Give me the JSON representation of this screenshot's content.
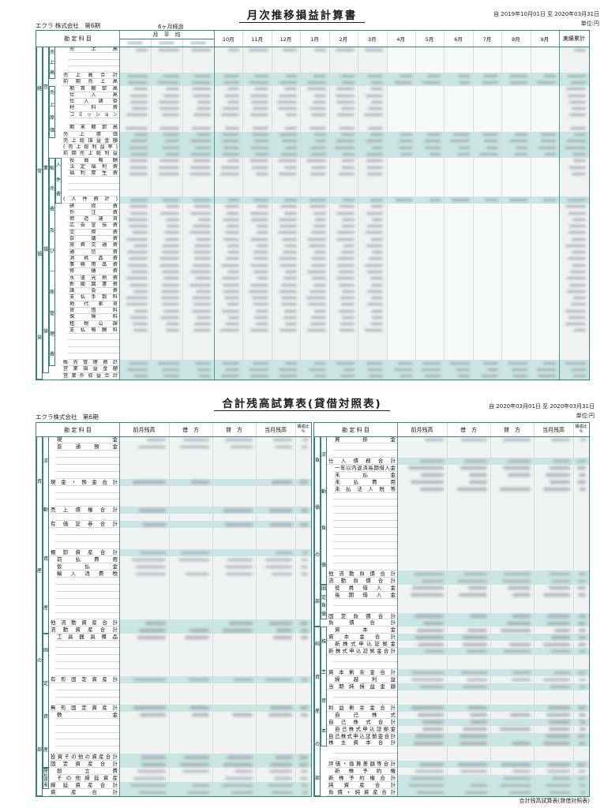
{
  "report1": {
    "title": "月次推移損益計算書",
    "period": "自 2019年10月01日 至 2020年03月31日",
    "unit": "単位:円",
    "company": "エクラ 株式会社　第6期",
    "elapsed": "6ヶ月経過",
    "header": {
      "account": "勘  定  科  目",
      "avg_group": "月　平　均",
      "months": [
        "10月",
        "11月",
        "12月",
        "1月",
        "2月",
        "3月",
        "4月",
        "5月",
        "6月",
        "7月",
        "8月",
        "9月"
      ],
      "total": "実績累計"
    },
    "bands": [
      {
        "col": 0,
        "label": "経常損益",
        "from": 1,
        "to": 51
      },
      {
        "col": 1,
        "label": "営業損益",
        "from": 1,
        "to": 50
      },
      {
        "col": 2,
        "label": "売上高",
        "from": 1,
        "to": 5
      },
      {
        "col": 2,
        "label": "売上原価",
        "from": 7,
        "to": 14
      },
      {
        "col": 2,
        "label": "販売費及び一般管理費",
        "from": 18,
        "to": 49
      },
      {
        "col": 3,
        "label": "人件費",
        "from": 18,
        "to": 24
      }
    ],
    "rows": [
      {
        "t": "売上高",
        "hl": 0
      },
      {
        "t": "",
        "hl": 0
      },
      {
        "t": "",
        "hl": 0
      },
      {
        "t": "",
        "hl": 0
      },
      {
        "t": "売上高合計",
        "hl": 1
      },
      {
        "t": "前期売上高",
        "hl": 1
      },
      {
        "t": "期首棚卸高",
        "hl": 0
      },
      {
        "t": "仕入高",
        "hl": 0
      },
      {
        "t": "仕入諸掛",
        "hl": 0
      },
      {
        "t": "材料費",
        "hl": 0
      },
      {
        "t": "コミッション",
        "hl": 0
      },
      {
        "t": "",
        "hl": 0
      },
      {
        "t": "期末棚卸高",
        "hl": 0
      },
      {
        "t": "売上原価",
        "hl": 1
      },
      {
        "t": "売上総損益金額",
        "hl": 1
      },
      {
        "t": "(売上総利益率)",
        "hl": 1
      },
      {
        "t": "前期売上総利益",
        "hl": 1
      },
      {
        "t": "役員報酬",
        "hl": 0
      },
      {
        "t": "法定福利費",
        "hl": 0
      },
      {
        "t": "福利厚生費",
        "hl": 0
      },
      {
        "t": "",
        "hl": 0
      },
      {
        "t": "",
        "hl": 0
      },
      {
        "t": "",
        "hl": 0
      },
      {
        "t": "(人件費計)",
        "hl": 1
      },
      {
        "t": "研修費",
        "hl": 0
      },
      {
        "t": "外注費",
        "hl": 0
      },
      {
        "t": "荷造運賃",
        "hl": 0
      },
      {
        "t": "広告宣伝費",
        "hl": 0
      },
      {
        "t": "交際費",
        "hl": 0
      },
      {
        "t": "会議費",
        "hl": 0
      },
      {
        "t": "旅費交通費",
        "hl": 0
      },
      {
        "t": "通信費",
        "hl": 0
      },
      {
        "t": "消耗品費",
        "hl": 0
      },
      {
        "t": "事務用品費",
        "hl": 0
      },
      {
        "t": "修繕費",
        "hl": 0
      },
      {
        "t": "水道光熱費",
        "hl": 0
      },
      {
        "t": "新聞図書費",
        "hl": 0
      },
      {
        "t": "諸会費",
        "hl": 0
      },
      {
        "t": "支払手数料",
        "hl": 0
      },
      {
        "t": "地代家賃",
        "hl": 0
      },
      {
        "t": "賃借料",
        "hl": 0
      },
      {
        "t": "保険料",
        "hl": 0
      },
      {
        "t": "租税公課",
        "hl": 0
      },
      {
        "t": "支払報酬料",
        "hl": 0
      },
      {
        "t": "",
        "hl": 0
      },
      {
        "t": "",
        "hl": 0
      },
      {
        "t": "",
        "hl": 0
      },
      {
        "t": "",
        "hl": 0
      },
      {
        "t": "販売管理費計",
        "hl": 1
      },
      {
        "t": "営業損益金額",
        "hl": 1
      },
      {
        "t": "営業外収益合計",
        "hl": 1
      }
    ]
  },
  "report2": {
    "title": "合計残高試算表(貸借対照表)",
    "period": "自 2020年03月01日 至 2020年03月31日",
    "unit": "単位:円",
    "company": "エクラ株式会社　第6期",
    "footer": "合計残高試算表(貸借対照表)",
    "header": {
      "account": "勘  定  科  目",
      "cols": [
        "前月残高",
        "借　方",
        "貸　方",
        "当月残高"
      ],
      "ratio": "構成比",
      "ratio2": "％"
    },
    "left": {
      "bands": [
        {
          "col": 0,
          "label": "資産の部",
          "from": 1,
          "to": 51
        },
        {
          "col": 1,
          "label": "流動資産",
          "from": 1,
          "to": 28
        },
        {
          "col": 1,
          "label": "固定資産",
          "from": 29,
          "to": 47
        },
        {
          "col": 1,
          "label": "繰延資産",
          "from": 48,
          "to": 50
        }
      ],
      "rows": [
        {
          "t": "現金",
          "hl": 0
        },
        {
          "t": "普通預金",
          "hl": 0
        },
        {
          "t": "",
          "hl": 0
        },
        {
          "t": "",
          "hl": 0
        },
        {
          "t": "",
          "hl": 0
        },
        {
          "t": "",
          "hl": 0
        },
        {
          "t": "現金・預金合計",
          "hl": 1
        },
        {
          "t": "",
          "hl": 0
        },
        {
          "t": "",
          "hl": 0
        },
        {
          "t": "",
          "hl": 0
        },
        {
          "t": "売上債権合計",
          "hl": 1
        },
        {
          "t": "",
          "hl": 0
        },
        {
          "t": "有価証券合計",
          "hl": 1
        },
        {
          "t": "",
          "hl": 0
        },
        {
          "t": "",
          "hl": 0
        },
        {
          "t": "",
          "hl": 0
        },
        {
          "t": "棚卸資産合計",
          "hl": 1
        },
        {
          "t": "前払費用",
          "hl": 0
        },
        {
          "t": "仮払金",
          "hl": 0
        },
        {
          "t": "輸入消費税",
          "hl": 0
        },
        {
          "t": "",
          "hl": 0
        },
        {
          "t": "",
          "hl": 0
        },
        {
          "t": "",
          "hl": 0
        },
        {
          "t": "",
          "hl": 0
        },
        {
          "t": "",
          "hl": 0
        },
        {
          "t": "",
          "hl": 0
        },
        {
          "t": "他流動資産合計",
          "hl": 1
        },
        {
          "t": "流動資産合計",
          "hl": 1
        },
        {
          "t": "工具器具備品",
          "hl": 0
        },
        {
          "t": "",
          "hl": 0
        },
        {
          "t": "",
          "hl": 0
        },
        {
          "t": "",
          "hl": 0
        },
        {
          "t": "",
          "hl": 0
        },
        {
          "t": "",
          "hl": 0
        },
        {
          "t": "有形固定資産計",
          "hl": 1
        },
        {
          "t": "",
          "hl": 0
        },
        {
          "t": "",
          "hl": 0
        },
        {
          "t": "",
          "hl": 0
        },
        {
          "t": "無形固定資産計",
          "hl": 1
        },
        {
          "t": "敷金",
          "hl": 0
        },
        {
          "t": "",
          "hl": 0
        },
        {
          "t": "",
          "hl": 0
        },
        {
          "t": "",
          "hl": 0
        },
        {
          "t": "",
          "hl": 0
        },
        {
          "t": "",
          "hl": 0
        },
        {
          "t": "投資その他の資産合計",
          "hl": 1
        },
        {
          "t": "固定資産合計",
          "hl": 1
        },
        {
          "t": "創立費",
          "hl": 0
        },
        {
          "t": "その他繰延資産",
          "hl": 0
        },
        {
          "t": "繰延資産合計",
          "hl": 1
        },
        {
          "t": "資産合計",
          "hl": 1
        }
      ]
    },
    "right": {
      "bands": [
        {
          "col": 0,
          "label": "負債の部",
          "from": 1,
          "to": 27
        },
        {
          "col": 0,
          "label": "純資産の部",
          "from": 28,
          "to": 51
        },
        {
          "col": 1,
          "label": "流動負債",
          "from": 1,
          "to": 21
        },
        {
          "col": 1,
          "label": "固定負債",
          "from": 22,
          "to": 26
        },
        {
          "col": 1,
          "label": "株主資本",
          "from": 28,
          "to": 44
        }
      ],
      "rows": [
        {
          "t": "買掛金",
          "hl": 0
        },
        {
          "t": "",
          "hl": 0
        },
        {
          "t": "",
          "hl": 0
        },
        {
          "t": "仕入債務合計",
          "hl": 1
        },
        {
          "t": "一年以内返済長期借入金",
          "hl": 0
        },
        {
          "t": "未払金",
          "hl": 0
        },
        {
          "t": "未払費用",
          "hl": 0
        },
        {
          "t": "未払法人税等",
          "hl": 0
        },
        {
          "t": "",
          "hl": 0
        },
        {
          "t": "",
          "hl": 0
        },
        {
          "t": "",
          "hl": 0
        },
        {
          "t": "",
          "hl": 0
        },
        {
          "t": "",
          "hl": 0
        },
        {
          "t": "",
          "hl": 0
        },
        {
          "t": "",
          "hl": 0
        },
        {
          "t": "",
          "hl": 0
        },
        {
          "t": "",
          "hl": 0
        },
        {
          "t": "",
          "hl": 0
        },
        {
          "t": "",
          "hl": 0
        },
        {
          "t": "他流動負債合計",
          "hl": 1
        },
        {
          "t": "流動負債合計",
          "hl": 1
        },
        {
          "t": "役員借入金",
          "hl": 0
        },
        {
          "t": "長期借入金",
          "hl": 0
        },
        {
          "t": "",
          "hl": 0
        },
        {
          "t": "",
          "hl": 0
        },
        {
          "t": "固定負債合計",
          "hl": 1
        },
        {
          "t": "負債合計",
          "hl": 1
        },
        {
          "t": "資本金",
          "hl": 0
        },
        {
          "t": "資本金合計",
          "hl": 1
        },
        {
          "t": "新株式申込証拠金",
          "hl": 0
        },
        {
          "t": "新株式申込証拠金合計",
          "hl": 1
        },
        {
          "t": "",
          "hl": 0
        },
        {
          "t": "",
          "hl": 0
        },
        {
          "t": "資本剰余金合計",
          "hl": 1
        },
        {
          "t": "繰越利益",
          "hl": 0
        },
        {
          "t": "当期純損益金額",
          "hl": 1
        },
        {
          "t": "",
          "hl": 0
        },
        {
          "t": "",
          "hl": 0
        },
        {
          "t": "利益剰余金合計",
          "hl": 1
        },
        {
          "t": "自己株式",
          "hl": 0
        },
        {
          "t": "自己株式合計",
          "hl": 1
        },
        {
          "t": "自己株式申込証拠金",
          "hl": 0
        },
        {
          "t": "自己株式申込証拠金合計",
          "hl": 1
        },
        {
          "t": "株主資本合計",
          "hl": 1
        },
        {
          "t": "",
          "hl": 0
        },
        {
          "t": "",
          "hl": 0
        },
        {
          "t": "評価・換算差額等合計",
          "hl": 1
        },
        {
          "t": "新株予約権",
          "hl": 0
        },
        {
          "t": "新株予約権合計",
          "hl": 1
        },
        {
          "t": "純資産合計",
          "hl": 1
        },
        {
          "t": "負債・純資産合計",
          "hl": 1
        }
      ]
    }
  }
}
